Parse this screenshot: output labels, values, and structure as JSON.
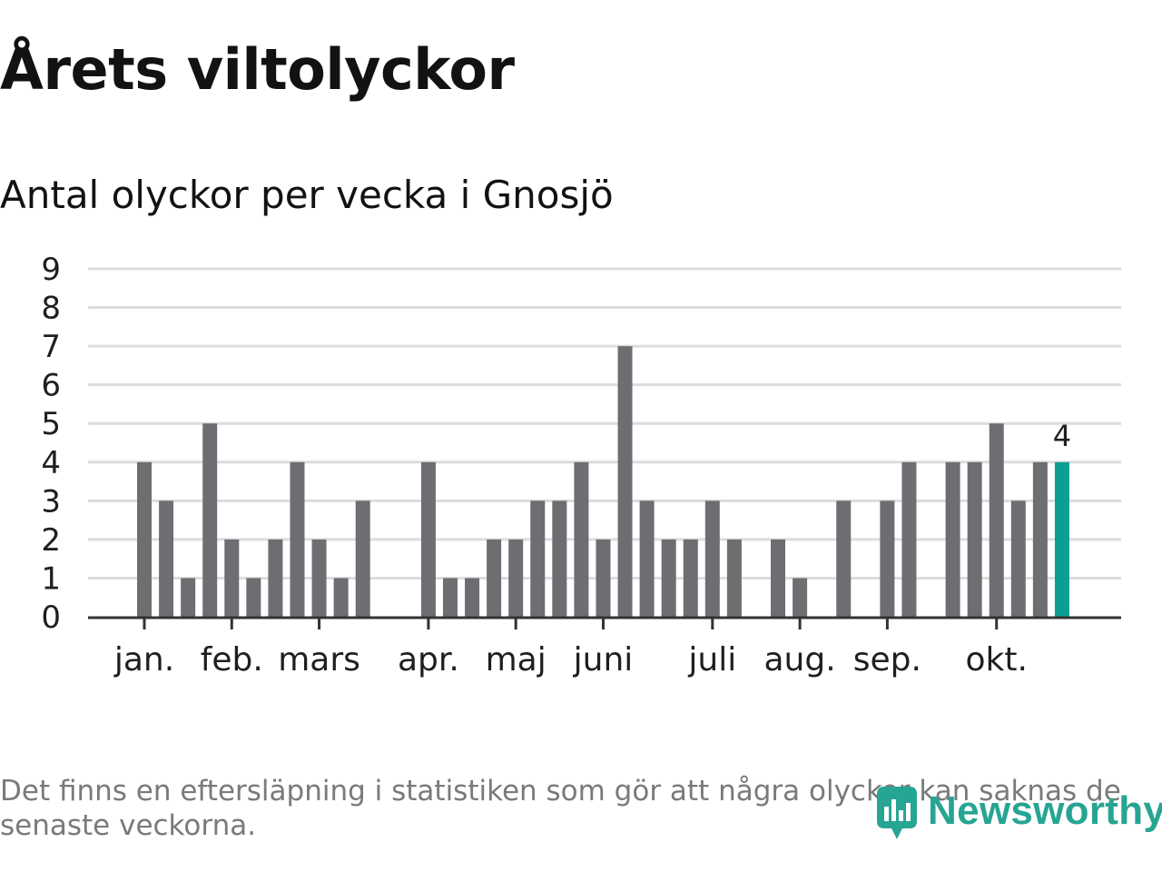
{
  "title": "Årets viltolyckor",
  "subtitle": "Antal olyckor per vecka i Gnosjö",
  "footnote": "Det finns en eftersläpning i statistiken som gör att några olyckor kan saknas de senaste veckorna.",
  "logo": {
    "text": "Newsworthy",
    "icon": "newsworthy-bar-icon"
  },
  "colors": {
    "bar": "#6e6d72",
    "highlight": "#0d9e93",
    "grid": "#dcdcdc",
    "axis": "#333333",
    "text": "#1f1f1f",
    "brand": "#27a593"
  },
  "chart_data": {
    "type": "bar",
    "title": "Antal olyckor per vecka i Gnosjö",
    "xlabel": "",
    "ylabel": "",
    "ylim": [
      0,
      9
    ],
    "yticks": [
      "0",
      "1",
      "2",
      "3",
      "4",
      "5",
      "6",
      "7",
      "8",
      "9"
    ],
    "grid": true,
    "weeks": [
      1,
      2,
      3,
      4,
      5,
      6,
      7,
      8,
      9,
      10,
      11,
      12,
      13,
      14,
      15,
      16,
      17,
      18,
      19,
      20,
      21,
      22,
      23,
      24,
      25,
      26,
      27,
      28,
      29,
      30,
      31,
      32,
      33,
      34,
      35,
      36,
      37,
      38,
      39,
      40,
      41,
      42,
      43
    ],
    "values": [
      4,
      3,
      1,
      5,
      2,
      1,
      2,
      4,
      2,
      1,
      3,
      0,
      0,
      4,
      1,
      1,
      2,
      2,
      3,
      3,
      4,
      2,
      7,
      3,
      2,
      2,
      3,
      2,
      0,
      2,
      1,
      0,
      3,
      0,
      3,
      4,
      0,
      4,
      4,
      5,
      3,
      4,
      4
    ],
    "highlight_index": 42,
    "highlight_label": "4",
    "month_labels": [
      {
        "label": "jan.",
        "week": 1
      },
      {
        "label": "feb.",
        "week": 5
      },
      {
        "label": "mars",
        "week": 9
      },
      {
        "label": "apr.",
        "week": 14
      },
      {
        "label": "maj",
        "week": 18
      },
      {
        "label": "juni",
        "week": 22
      },
      {
        "label": "juli",
        "week": 27
      },
      {
        "label": "aug.",
        "week": 31
      },
      {
        "label": "sep.",
        "week": 35
      },
      {
        "label": "okt.",
        "week": 40
      }
    ]
  }
}
